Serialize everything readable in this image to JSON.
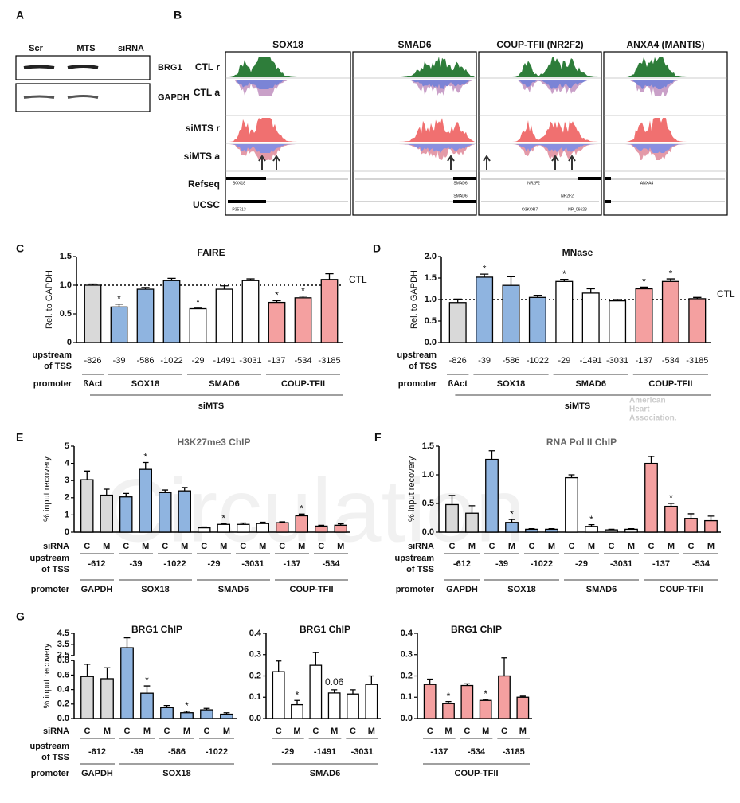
{
  "panel_letters": [
    "A",
    "B",
    "C",
    "D",
    "E",
    "F",
    "G"
  ],
  "blot": {
    "lanes": [
      "Scr",
      "MTS"
    ],
    "lane_header": "siRNA",
    "proteins": [
      "BRG1",
      "GAPDH"
    ]
  },
  "tracks": {
    "genes": [
      "SOX18",
      "SMAD6",
      "COUP-TFII (NR2F2)",
      "ANXA4 (MANTIS)"
    ],
    "rows": [
      "CTL r",
      "CTL a",
      "siMTS r",
      "siMTS a",
      "Refseq",
      "UCSC"
    ],
    "gene_labels": [
      [
        "SOX18",
        "P35713"
      ],
      [
        "SMAD6",
        "SMAD6"
      ],
      [
        "NR2F2",
        "NR2F2",
        "O3KOR7",
        "NP_06628"
      ],
      [
        "ANXA4"
      ]
    ]
  },
  "watermark": "Circulation",
  "aha_mark": [
    "American",
    "Heart",
    "Association."
  ],
  "chart_data": [
    {
      "type": "bar",
      "title": "FAIRE",
      "y_label": "Rel. to GAPDH",
      "categories": [
        "-826",
        "-39",
        "-586",
        "-1022",
        "-29",
        "-1491",
        "-3031",
        "-137",
        "-534",
        "-3185"
      ],
      "values": [
        1.0,
        0.62,
        0.93,
        1.08,
        0.59,
        0.93,
        1.08,
        0.7,
        0.78,
        1.1
      ],
      "errors": [
        0.02,
        0.05,
        0.03,
        0.04,
        0.02,
        0.06,
        0.03,
        0.03,
        0.03,
        0.1
      ],
      "groups": [
        {
          "label": "ßAct",
          "count": 1,
          "color": "#d9d9d9"
        },
        {
          "label": "SOX18",
          "count": 3,
          "color": "#8fb4e0"
        },
        {
          "label": "SMAD6",
          "count": 3,
          "color": "#ffffff"
        },
        {
          "label": "COUP-TFII",
          "count": 3,
          "color": "#f4a0a0"
        }
      ],
      "treatment": "siMTS",
      "significant": [
        1,
        4,
        7,
        8
      ],
      "star": "*",
      "ref_line": {
        "value": 1,
        "label": "CTL"
      },
      "ylim": [
        0,
        1.5
      ],
      "yticks": [
        0,
        0.5,
        {
          "value": 1,
          "label": "1.0"
        },
        1.5
      ],
      "row_labels": {
        "site": [
          "upstream",
          "of TSS"
        ],
        "promoter": "promoter"
      }
    },
    {
      "type": "bar",
      "title": "MNase",
      "y_label": "Rel. to GAPDH",
      "categories": [
        "-826",
        "-39",
        "-586",
        "-1022",
        "-29",
        "-1491",
        "-3031",
        "-137",
        "-534",
        "-3185"
      ],
      "values": [
        0.93,
        1.52,
        1.33,
        1.05,
        1.42,
        1.15,
        0.97,
        1.25,
        1.42,
        1.02
      ],
      "errors": [
        0.08,
        0.07,
        0.2,
        0.05,
        0.05,
        0.1,
        0.03,
        0.04,
        0.06,
        0.03
      ],
      "groups": [
        {
          "label": "ßAct",
          "count": 1,
          "color": "#d9d9d9"
        },
        {
          "label": "SOX18",
          "count": 3,
          "color": "#8fb4e0"
        },
        {
          "label": "SMAD6",
          "count": 3,
          "color": "#ffffff"
        },
        {
          "label": "COUP-TFII",
          "count": 3,
          "color": "#f4a0a0"
        }
      ],
      "treatment": "siMTS",
      "significant": [
        1,
        4,
        7,
        8
      ],
      "star": "*",
      "ref_line": {
        "value": 1,
        "label": "CTL"
      },
      "ylim": [
        0,
        2
      ],
      "yticks": [
        {
          "value": 0,
          "label": "0.0"
        },
        0.5,
        {
          "value": 1,
          "label": "1.0"
        },
        1.5,
        {
          "value": 2,
          "label": "2.0"
        }
      ],
      "row_labels": {
        "site": [
          "upstream",
          "of TSS"
        ],
        "promoter": "promoter"
      }
    },
    {
      "type": "bar",
      "title": "H3K27me3 ChIP",
      "y_label": "% input recovery",
      "categories": [
        "C",
        "M",
        "C",
        "M",
        "C",
        "M",
        "C",
        "M",
        "C",
        "M",
        "C",
        "M",
        "C",
        "M"
      ],
      "sites": [
        "-612",
        "-39",
        "-1022",
        "-29",
        "-3031",
        "-137",
        "-534"
      ],
      "values": [
        3.05,
        2.15,
        2.05,
        3.65,
        2.3,
        2.4,
        0.25,
        0.45,
        0.45,
        0.5,
        0.55,
        0.95,
        0.35,
        0.4
      ],
      "errors": [
        0.5,
        0.35,
        0.2,
        0.4,
        0.15,
        0.2,
        0.05,
        0.05,
        0.08,
        0.08,
        0.05,
        0.1,
        0.05,
        0.08
      ],
      "groups": [
        {
          "label": "GAPDH",
          "count": 2,
          "color": "#d9d9d9"
        },
        {
          "label": "SOX18",
          "count": 4,
          "color": "#8fb4e0"
        },
        {
          "label": "SMAD6",
          "count": 4,
          "color": "#ffffff"
        },
        {
          "label": "COUP-TFII",
          "count": 4,
          "color": "#f4a0a0"
        }
      ],
      "significant": [
        3,
        7,
        11
      ],
      "star": "*",
      "ylim": [
        0,
        5
      ],
      "yticks": [
        0,
        1,
        2,
        3,
        4,
        5
      ],
      "row_labels": {
        "sirna": "siRNA",
        "site": [
          "upstream",
          "of TSS"
        ],
        "promoter": "promoter"
      }
    },
    {
      "type": "bar",
      "title": "RNA Pol II ChIP",
      "y_label": "% input recovery",
      "categories": [
        "C",
        "M",
        "C",
        "M",
        "C",
        "M",
        "C",
        "M",
        "C",
        "M",
        "C",
        "M",
        "C",
        "M"
      ],
      "sites": [
        "-612",
        "-39",
        "-1022",
        "-29",
        "-3031",
        "-137",
        "-534"
      ],
      "values": [
        0.48,
        0.33,
        1.27,
        0.17,
        0.05,
        0.05,
        0.95,
        0.1,
        0.04,
        0.05,
        1.2,
        0.45,
        0.24,
        0.2
      ],
      "errors": [
        0.16,
        0.13,
        0.15,
        0.05,
        0.01,
        0.01,
        0.05,
        0.03,
        0.01,
        0.01,
        0.12,
        0.05,
        0.08,
        0.08
      ],
      "groups": [
        {
          "label": "GAPDH",
          "count": 2,
          "color": "#d9d9d9"
        },
        {
          "label": "SOX18",
          "count": 4,
          "color": "#8fb4e0"
        },
        {
          "label": "SMAD6",
          "count": 4,
          "color": "#ffffff"
        },
        {
          "label": "COUP-TFII",
          "count": 4,
          "color": "#f4a0a0"
        }
      ],
      "significant": [
        3,
        7,
        11
      ],
      "star": "*",
      "ylim": [
        0,
        1.5
      ],
      "yticks": [
        {
          "value": 0,
          "label": "0.0"
        },
        0.5,
        {
          "value": 1,
          "label": "1.0"
        },
        1.5
      ],
      "row_labels": {
        "sirna": "siRNA",
        "site": [
          "upstream",
          "of TSS"
        ],
        "promoter": "promoter"
      }
    },
    {
      "type": "bar",
      "title": "BRG1 ChIP",
      "y_label": "% input recovery",
      "categories": [
        "C",
        "M",
        "C",
        "M",
        "C",
        "M",
        "C",
        "M"
      ],
      "sites": [
        "-612",
        "-39",
        "-586",
        "-1022"
      ],
      "values": [
        0.58,
        0.55,
        3.2,
        0.35,
        0.15,
        0.08,
        0.12,
        0.06
      ],
      "errors": [
        0.17,
        0.15,
        0.9,
        0.1,
        0.03,
        0.02,
        0.02,
        0.02
      ],
      "groups": [
        {
          "label": "GAPDH",
          "count": 2,
          "color": "#d9d9d9"
        },
        {
          "label": "SOX18",
          "count": 6,
          "color": "#8fb4e0"
        }
      ],
      "significant": [
        3,
        5
      ],
      "star": "*",
      "ylim": [
        0,
        4.5
      ],
      "ybreak": [
        0.8,
        2.5
      ],
      "yticks": [
        {
          "value": 0,
          "label": "0.0"
        },
        0.2,
        0.4,
        0.6,
        0.8,
        2.5,
        3.5,
        4.5
      ],
      "row_labels": {
        "sirna": "siRNA",
        "site": [
          "upstream",
          "of TSS"
        ],
        "promoter": "promoter"
      }
    },
    {
      "type": "bar",
      "title": "BRG1 ChIP",
      "categories": [
        "C",
        "M",
        "C",
        "M",
        "C",
        "M"
      ],
      "sites": [
        "-29",
        "-1491",
        "-3031"
      ],
      "values": [
        0.22,
        0.065,
        0.25,
        0.12,
        0.115,
        0.16
      ],
      "errors": [
        0.05,
        0.02,
        0.06,
        0.015,
        0.02,
        0.04
      ],
      "groups": [
        {
          "label": "SMAD6",
          "count": 6,
          "color": "#ffffff"
        }
      ],
      "significant": [
        1
      ],
      "star": "*",
      "annotations": [
        {
          "index": 3,
          "text": "0.06"
        }
      ],
      "ylim": [
        0,
        0.4
      ],
      "yticks": [
        {
          "value": 0,
          "label": "0.0"
        },
        0.1,
        0.2,
        0.3,
        0.4
      ]
    },
    {
      "type": "bar",
      "title": "BRG1 ChIP",
      "categories": [
        "C",
        "M",
        "C",
        "M",
        "C",
        "M"
      ],
      "sites": [
        "-137",
        "-534",
        "-3185"
      ],
      "values": [
        0.16,
        0.07,
        0.155,
        0.085,
        0.2,
        0.1
      ],
      "errors": [
        0.025,
        0.01,
        0.008,
        0.005,
        0.085,
        0.005
      ],
      "groups": [
        {
          "label": "COUP-TFII",
          "count": 6,
          "color": "#f4a0a0"
        }
      ],
      "significant": [
        1,
        3
      ],
      "star": "*",
      "ylim": [
        0,
        0.4
      ],
      "yticks": [
        {
          "value": 0,
          "label": "0.0"
        },
        0.1,
        0.2,
        0.3,
        0.4
      ]
    }
  ]
}
